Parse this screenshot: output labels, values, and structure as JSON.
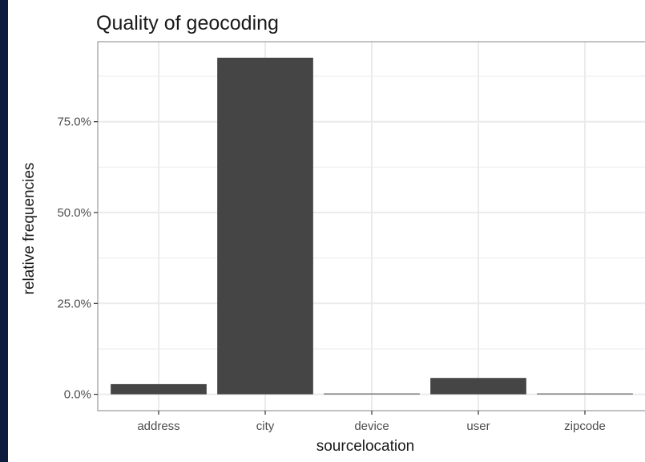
{
  "chart_data": {
    "type": "bar",
    "title": "Quality of geocoding",
    "xlabel": "sourcelocation",
    "ylabel": "relative frequencies",
    "categories": [
      "address",
      "city",
      "device",
      "user",
      "zipcode"
    ],
    "values": [
      0.028,
      0.926,
      0.002,
      0.045,
      0.001
    ],
    "ylim": [
      -0.045,
      0.97
    ],
    "yticks": [
      0,
      0.25,
      0.5,
      0.75
    ],
    "ytick_labels": [
      "0.0%",
      "25.0%",
      "50.0%",
      "75.0%"
    ],
    "grid": true,
    "bar_color": "#454545",
    "grid_color": "#ebebeb",
    "panel_border_color": "#999999"
  }
}
